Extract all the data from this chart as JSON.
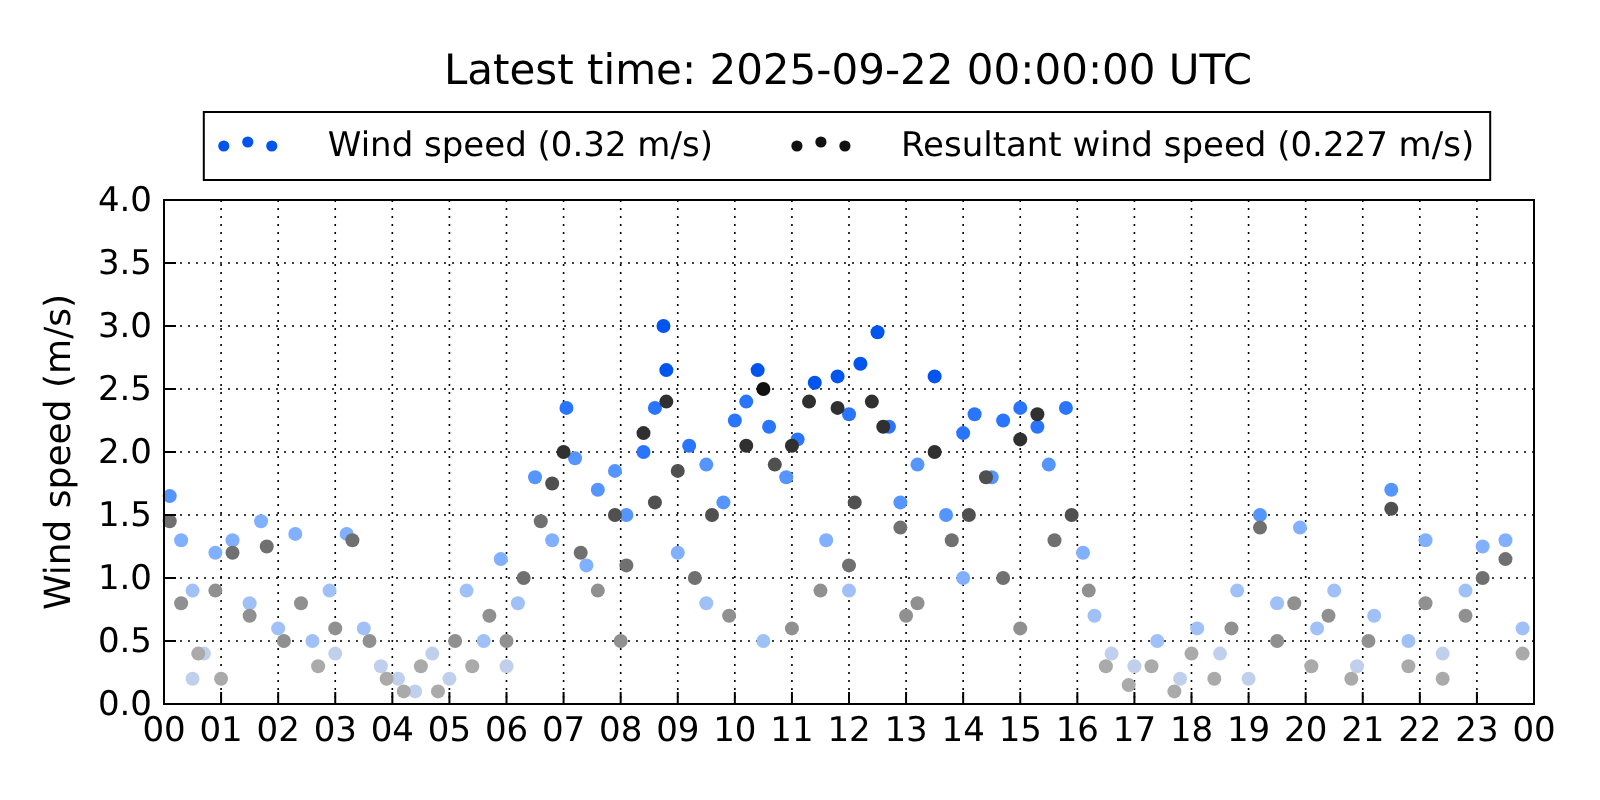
{
  "chart_data": {
    "type": "scatter",
    "title": "Latest time: 2025-09-22 00:00:00 UTC",
    "ylabel": "Wind speed (m/s)",
    "xlim": [
      0,
      24
    ],
    "ylim": [
      0,
      4
    ],
    "xticks": [
      {
        "value": 0,
        "label": "00"
      },
      {
        "value": 1,
        "label": "01"
      },
      {
        "value": 2,
        "label": "02"
      },
      {
        "value": 3,
        "label": "03"
      },
      {
        "value": 4,
        "label": "04"
      },
      {
        "value": 5,
        "label": "05"
      },
      {
        "value": 6,
        "label": "06"
      },
      {
        "value": 7,
        "label": "07"
      },
      {
        "value": 8,
        "label": "08"
      },
      {
        "value": 9,
        "label": "09"
      },
      {
        "value": 10,
        "label": "10"
      },
      {
        "value": 11,
        "label": "11"
      },
      {
        "value": 12,
        "label": "12"
      },
      {
        "value": 13,
        "label": "13"
      },
      {
        "value": 14,
        "label": "14"
      },
      {
        "value": 15,
        "label": "15"
      },
      {
        "value": 16,
        "label": "16"
      },
      {
        "value": 17,
        "label": "17"
      },
      {
        "value": 18,
        "label": "18"
      },
      {
        "value": 19,
        "label": "19"
      },
      {
        "value": 20,
        "label": "20"
      },
      {
        "value": 21,
        "label": "21"
      },
      {
        "value": 22,
        "label": "22"
      },
      {
        "value": 23,
        "label": "23"
      },
      {
        "value": 24,
        "label": "00"
      }
    ],
    "yticks": [
      {
        "value": 0,
        "label": "0.0"
      },
      {
        "value": 0.5,
        "label": "0.5"
      },
      {
        "value": 1,
        "label": "1.0"
      },
      {
        "value": 1.5,
        "label": "1.5"
      },
      {
        "value": 2,
        "label": "2.0"
      },
      {
        "value": 2.5,
        "label": "2.5"
      },
      {
        "value": 3,
        "label": "3.0"
      },
      {
        "value": 3.5,
        "label": "3.5"
      },
      {
        "value": 4,
        "label": "4.0"
      }
    ],
    "grid": true,
    "legend": "top",
    "marker": "circle",
    "series": [
      {
        "name": "Wind speed (0.32 m/s)",
        "color": "#0055ee",
        "x": [
          0.1,
          0.3,
          0.5,
          0.7,
          0.9,
          1.2,
          1.5,
          1.7,
          2.0,
          2.3,
          2.6,
          2.9,
          3.2,
          3.5,
          3.8,
          4.1,
          4.4,
          4.7,
          5.0,
          5.3,
          5.6,
          5.9,
          6.2,
          6.5,
          6.8,
          7.05,
          7.2,
          7.4,
          7.6,
          7.9,
          8.1,
          8.4,
          8.6,
          8.75,
          8.8,
          9.0,
          9.2,
          9.5,
          9.8,
          10.0,
          10.2,
          10.4,
          10.6,
          10.9,
          11.1,
          11.4,
          11.6,
          11.8,
          12.0,
          12.2,
          12.5,
          12.7,
          12.9,
          13.2,
          13.5,
          13.7,
          14.0,
          14.2,
          14.5,
          14.7,
          15.0,
          15.3,
          15.5,
          15.8,
          16.1,
          16.3,
          16.6,
          17.0,
          17.4,
          17.8,
          18.1,
          18.5,
          18.8,
          19.2,
          19.5,
          19.9,
          20.2,
          20.5,
          20.9,
          21.2,
          21.5,
          21.8,
          22.1,
          22.4,
          22.8,
          23.1,
          23.5,
          23.8,
          0.5,
          3.0,
          9.5,
          12.0,
          14.0,
          10.5,
          6.0,
          19.0
        ],
        "values": [
          1.65,
          1.3,
          0.9,
          0.4,
          1.2,
          1.3,
          0.8,
          1.45,
          0.6,
          1.35,
          0.5,
          0.9,
          1.35,
          0.6,
          0.3,
          0.2,
          0.1,
          0.4,
          0.2,
          0.9,
          0.5,
          1.15,
          0.8,
          1.8,
          1.3,
          2.35,
          1.95,
          1.1,
          1.7,
          1.85,
          1.5,
          2.0,
          2.35,
          3.0,
          2.65,
          1.2,
          2.05,
          1.9,
          1.6,
          2.25,
          2.4,
          2.65,
          2.2,
          1.8,
          2.1,
          2.55,
          1.3,
          2.6,
          2.3,
          2.7,
          2.95,
          2.2,
          1.6,
          1.9,
          2.6,
          1.5,
          2.15,
          2.3,
          1.8,
          2.25,
          2.35,
          2.2,
          1.9,
          2.35,
          1.2,
          0.7,
          0.4,
          0.3,
          0.5,
          0.2,
          0.6,
          0.4,
          0.9,
          1.5,
          0.8,
          1.4,
          0.6,
          0.9,
          0.3,
          0.7,
          1.7,
          0.5,
          1.3,
          0.4,
          0.9,
          1.25,
          1.3,
          0.6,
          0.2,
          0.4,
          0.8,
          0.9,
          1.0,
          0.5,
          0.3,
          0.2
        ],
        "colors": [
          "#5595ff",
          "#80b0ff",
          "#a0c0f8",
          "#c0d0ec",
          "#80b0ff",
          "#80b0ff",
          "#a0c0f8",
          "#80b0ff",
          "#a0c0f8",
          "#80b0ff",
          "#a0c0f8",
          "#a0c0f8",
          "#80b0ff",
          "#a0c0f8",
          "#c0d0ec",
          "#c0d0ec",
          "#c0d0ec",
          "#c0d0ec",
          "#c0d0ec",
          "#a0c0f8",
          "#a0c0f8",
          "#80b0ff",
          "#a0c0f8",
          "#5595ff",
          "#80b0ff",
          "#2a75ff",
          "#5595ff",
          "#80b0ff",
          "#5595ff",
          "#5595ff",
          "#5595ff",
          "#2a75ff",
          "#2a75ff",
          "#0055ee",
          "#0055ee",
          "#80b0ff",
          "#2a75ff",
          "#5595ff",
          "#5595ff",
          "#2a75ff",
          "#2a75ff",
          "#0055ee",
          "#2a75ff",
          "#5595ff",
          "#2a75ff",
          "#0055ee",
          "#80b0ff",
          "#0055ee",
          "#2a75ff",
          "#0055ee",
          "#0055ee",
          "#2a75ff",
          "#5595ff",
          "#5595ff",
          "#0055ee",
          "#5595ff",
          "#2a75ff",
          "#2a75ff",
          "#5595ff",
          "#2a75ff",
          "#2a75ff",
          "#2a75ff",
          "#5595ff",
          "#2a75ff",
          "#80b0ff",
          "#a0c0f8",
          "#c0d0ec",
          "#c0d0ec",
          "#a0c0f8",
          "#c0d0ec",
          "#a0c0f8",
          "#c0d0ec",
          "#a0c0f8",
          "#5595ff",
          "#a0c0f8",
          "#80b0ff",
          "#a0c0f8",
          "#a0c0f8",
          "#c0d0ec",
          "#a0c0f8",
          "#5595ff",
          "#a0c0f8",
          "#80b0ff",
          "#c0d0ec",
          "#a0c0f8",
          "#80b0ff",
          "#80b0ff",
          "#a0c0f8",
          "#c0d0ec",
          "#c0d0ec",
          "#a0c0f8",
          "#a0c0f8",
          "#80b0ff",
          "#a0c0f8",
          "#c0d0ec",
          "#c0d0ec"
        ]
      },
      {
        "name": "Resultant wind speed (0.227 m/s)",
        "color": "#111111",
        "x": [
          0.1,
          0.3,
          0.6,
          0.9,
          1.2,
          1.5,
          1.8,
          2.1,
          2.4,
          2.7,
          3.0,
          3.3,
          3.6,
          3.9,
          4.2,
          4.5,
          4.8,
          5.1,
          5.4,
          5.7,
          6.0,
          6.3,
          6.6,
          6.8,
          7.0,
          7.3,
          7.6,
          7.9,
          8.1,
          8.4,
          8.6,
          8.8,
          9.0,
          9.3,
          9.6,
          9.9,
          10.2,
          10.5,
          10.7,
          11.0,
          11.3,
          11.5,
          11.8,
          12.1,
          12.4,
          12.6,
          12.9,
          13.2,
          13.5,
          13.8,
          14.1,
          14.4,
          14.7,
          15.0,
          15.3,
          15.6,
          15.9,
          16.2,
          16.5,
          16.9,
          17.3,
          17.7,
          18.0,
          18.4,
          18.7,
          19.2,
          19.5,
          19.8,
          20.1,
          20.4,
          20.8,
          21.1,
          21.5,
          21.8,
          22.1,
          22.4,
          22.8,
          23.1,
          23.5,
          23.8,
          1.0,
          8.0,
          11.0,
          13.0,
          15.0,
          12.0
        ],
        "values": [
          1.45,
          0.8,
          0.4,
          0.9,
          1.2,
          0.7,
          1.25,
          0.5,
          0.8,
          0.3,
          0.6,
          1.3,
          0.5,
          0.2,
          0.1,
          0.3,
          0.1,
          0.5,
          0.3,
          0.7,
          0.5,
          1.0,
          1.45,
          1.75,
          2.0,
          1.2,
          0.9,
          1.5,
          1.1,
          2.15,
          1.6,
          2.4,
          1.85,
          1.0,
          1.5,
          0.7,
          2.05,
          2.5,
          1.9,
          2.05,
          2.4,
          0.9,
          2.35,
          1.6,
          2.4,
          2.2,
          1.4,
          0.8,
          2.0,
          1.3,
          1.5,
          1.8,
          1.0,
          2.1,
          2.3,
          1.3,
          1.5,
          0.9,
          0.3,
          0.15,
          0.3,
          0.1,
          0.4,
          0.2,
          0.6,
          1.4,
          0.5,
          0.8,
          0.3,
          0.7,
          0.2,
          0.5,
          1.55,
          0.3,
          0.8,
          0.2,
          0.7,
          1.0,
          1.15,
          0.4,
          0.2,
          0.5,
          0.6,
          0.7,
          0.6,
          1.1
        ],
        "colors": [
          "#707070",
          "#909090",
          "#aaaaaa",
          "#909090",
          "#707070",
          "#909090",
          "#707070",
          "#909090",
          "#909090",
          "#aaaaaa",
          "#909090",
          "#707070",
          "#909090",
          "#aaaaaa",
          "#aaaaaa",
          "#aaaaaa",
          "#aaaaaa",
          "#909090",
          "#aaaaaa",
          "#909090",
          "#909090",
          "#707070",
          "#707070",
          "#505050",
          "#303030",
          "#707070",
          "#909090",
          "#505050",
          "#707070",
          "#303030",
          "#505050",
          "#303030",
          "#505050",
          "#707070",
          "#505050",
          "#909090",
          "#303030",
          "#111111",
          "#505050",
          "#303030",
          "#303030",
          "#909090",
          "#303030",
          "#505050",
          "#303030",
          "#303030",
          "#707070",
          "#909090",
          "#303030",
          "#707070",
          "#505050",
          "#505050",
          "#707070",
          "#303030",
          "#303030",
          "#707070",
          "#505050",
          "#909090",
          "#aaaaaa",
          "#aaaaaa",
          "#aaaaaa",
          "#aaaaaa",
          "#aaaaaa",
          "#aaaaaa",
          "#909090",
          "#707070",
          "#909090",
          "#909090",
          "#aaaaaa",
          "#909090",
          "#aaaaaa",
          "#909090",
          "#505050",
          "#aaaaaa",
          "#909090",
          "#aaaaaa",
          "#909090",
          "#707070",
          "#707070",
          "#aaaaaa",
          "#aaaaaa",
          "#909090",
          "#909090",
          "#909090",
          "#909090",
          "#707070"
        ]
      }
    ]
  }
}
